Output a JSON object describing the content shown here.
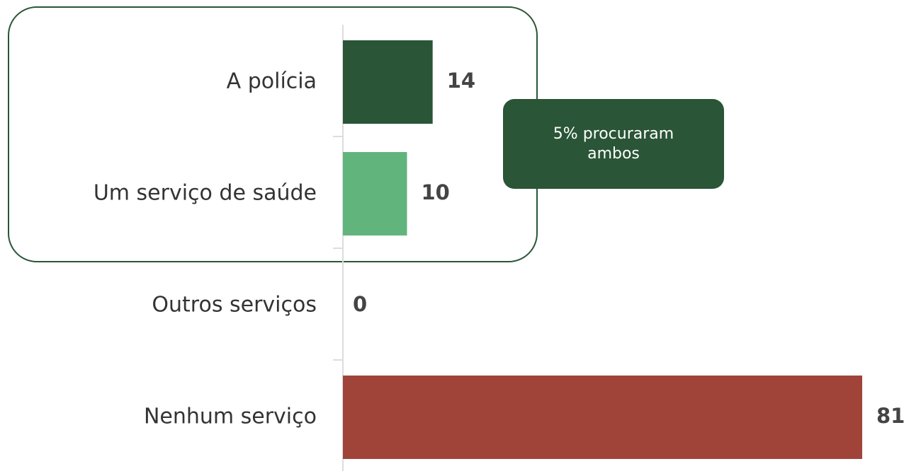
{
  "chart_data": {
    "type": "bar",
    "orientation": "horizontal",
    "categories": [
      "A polícia",
      "Um serviço de saúde",
      "Outros serviços",
      "Nenhum serviço"
    ],
    "values": [
      14,
      10,
      0,
      81
    ],
    "colors": [
      "#2a5537",
      "#62b47d",
      "#62b47d",
      "#a0443a"
    ],
    "xlim": [
      0,
      81
    ],
    "annotation": "5% procuraram ambos"
  }
}
